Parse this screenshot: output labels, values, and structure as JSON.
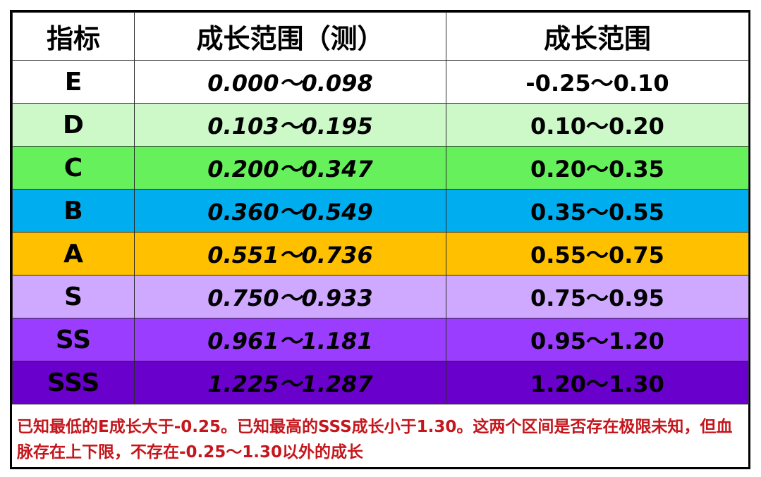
{
  "table": {
    "headers": [
      "指标",
      "成长范围（测）",
      "成长范围"
    ],
    "rows": [
      {
        "grade": "E",
        "measured": "0.000～0.098",
        "range": "-0.25～0.10",
        "color": "#ffffff"
      },
      {
        "grade": "D",
        "measured": "0.103～0.195",
        "range": "0.10～0.20",
        "color": "#cdf9c9"
      },
      {
        "grade": "C",
        "measured": "0.200～0.347",
        "range": "0.20～0.35",
        "color": "#66f15c"
      },
      {
        "grade": "B",
        "measured": "0.360～0.549",
        "range": "0.35～0.55",
        "color": "#00aeef"
      },
      {
        "grade": "A",
        "measured": "0.551～0.736",
        "range": "0.55～0.75",
        "color": "#ffc000"
      },
      {
        "grade": "S",
        "measured": "0.750～0.933",
        "range": "0.75～0.95",
        "color": "#cfa9ff"
      },
      {
        "grade": "SS",
        "measured": "0.961～1.181",
        "range": "0.95～1.20",
        "color": "#9b3dff"
      },
      {
        "grade": "SSS",
        "measured": "1.225～1.287",
        "range": "1.20～1.30",
        "color": "#6a00cc"
      }
    ]
  },
  "note": {
    "text": "已知最低的E成长大于-0.25。已知最高的SSS成长小于1.30。这两个区间是否存在极限未知，但血脉存在上下限，不存在-0.25～1.30以外的成长",
    "color": "#c4161c"
  }
}
